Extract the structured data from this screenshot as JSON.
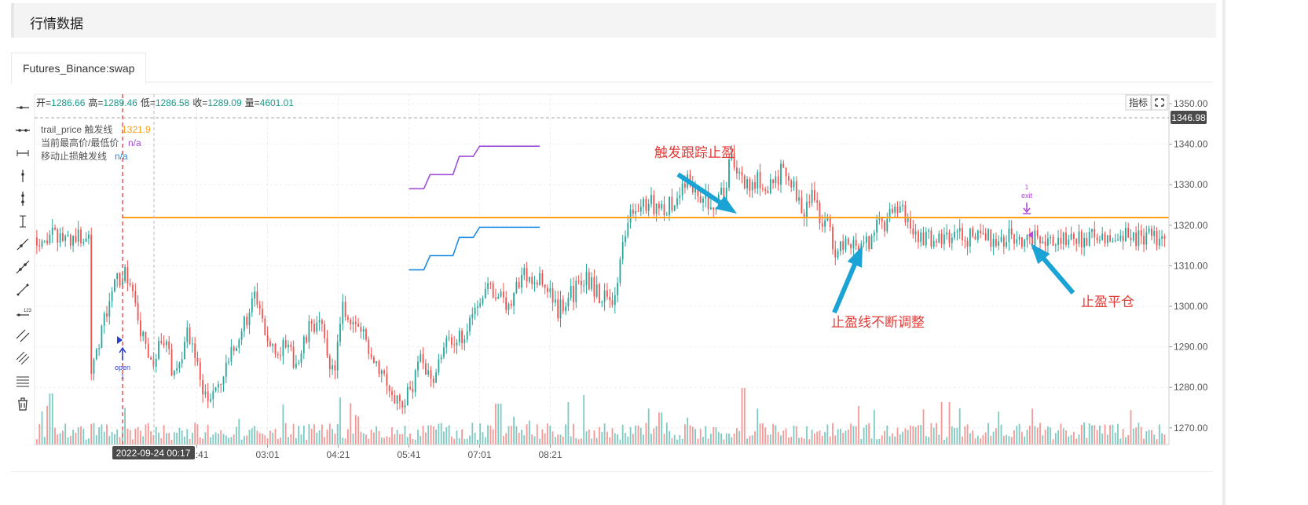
{
  "header": {
    "title": "行情数据"
  },
  "tab": {
    "label": "Futures_Binance:swap"
  },
  "ohlc": {
    "open_label": "开",
    "open": "1286.66",
    "high_label": "高",
    "high": "1289.46",
    "low_label": "低",
    "low": "1286.58",
    "close_label": "收",
    "close": "1289.09",
    "vol_label": "量",
    "vol": "4601.01"
  },
  "legend": [
    {
      "label": "trail_price 触发线",
      "value": "1321.9",
      "color": "#ff9f1a"
    },
    {
      "label": "当前最高价/最低价",
      "value": "n/a",
      "color": "#a04ed8"
    },
    {
      "label": "移动止损触发线",
      "value": "n/a",
      "color": "#1a8ae5"
    }
  ],
  "buttons": {
    "indicator": "指标"
  },
  "crosshair": {
    "time_label": "2022-09-24 00:17",
    "price_label": "1346.98"
  },
  "markers": {
    "open": "open",
    "exit": "exit",
    "exit_count": "1"
  },
  "annotations": {
    "trigger": "触发跟踪止盈",
    "adjust": "止盈线不断调整",
    "close": "止盈平仓"
  },
  "toolbar_tools": [
    "horizontal-ray-icon",
    "horizontal-line-icon",
    "horizontal-segment-icon",
    "vertical-ray-icon",
    "vertical-line-icon",
    "vertical-segment-icon",
    "ray-icon",
    "extended-line-icon",
    "segment-icon",
    "price-line-icon",
    "parallel-lines-icon",
    "channel-icon",
    "fibonacci-icon",
    "trash-icon"
  ],
  "colors": {
    "up": "#26a69a",
    "down": "#ef5350",
    "trail": "#ff9f1a",
    "high": "#a04ed8",
    "stop": "#1a8ae5",
    "annotation": "#e53935",
    "arrow": "#1aa3d4"
  },
  "chart_data": {
    "type": "candlestick",
    "x_ticks": [
      "01:41",
      "03:01",
      "04:21",
      "05:41",
      "07:01",
      "08:21"
    ],
    "y_ticks": [
      1270,
      1280,
      1290,
      1300,
      1310,
      1320,
      1330,
      1340,
      1350
    ],
    "ylim": [
      1265,
      1352
    ],
    "series": [
      {
        "name": "trail_price 触发线",
        "segments": [
          {
            "x": [
              "00:17",
              "09:51"
            ],
            "y": 1321.9
          }
        ]
      },
      {
        "name": "当前最高价/最低价",
        "steps": [
          [
            "05:41",
            1329
          ],
          [
            "06:05",
            1332.5
          ],
          [
            "06:38",
            1337
          ],
          [
            "07:01",
            1339.5
          ],
          [
            "08:09",
            1339.5
          ]
        ]
      },
      {
        "name": "移动止损触发线",
        "steps": [
          [
            "05:41",
            1309
          ],
          [
            "06:05",
            1312.5
          ],
          [
            "06:38",
            1317
          ],
          [
            "07:01",
            1319.5
          ],
          [
            "08:09",
            1319.5
          ]
        ]
      }
    ]
  }
}
